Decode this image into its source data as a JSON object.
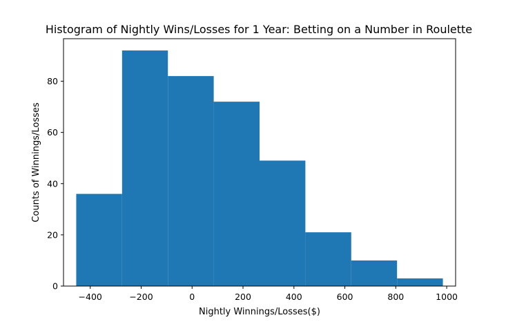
{
  "chart_data": {
    "type": "bar",
    "title": "Histogram of Nightly Wins/Losses for 1 Year: Betting on a Number in Roulette",
    "xlabel": "Nightly Winnings/Losses($)",
    "ylabel": "Counts of Winnings/Losses",
    "bins": [
      {
        "start": -455,
        "end": -275,
        "count": 36
      },
      {
        "start": -275,
        "end": -95,
        "count": 92
      },
      {
        "start": -95,
        "end": 85,
        "count": 82
      },
      {
        "start": 85,
        "end": 265,
        "count": 72
      },
      {
        "start": 265,
        "end": 445,
        "count": 49
      },
      {
        "start": 445,
        "end": 625,
        "count": 21
      },
      {
        "start": 625,
        "end": 805,
        "count": 10
      },
      {
        "start": 805,
        "end": 985,
        "count": 3
      }
    ],
    "xlim": [
      -505,
      1035
    ],
    "ylim": [
      0,
      96.6
    ],
    "xticks": [
      -400,
      -200,
      0,
      200,
      400,
      600,
      800,
      1000
    ],
    "xtick_labels": [
      "−400",
      "−200",
      "0",
      "200",
      "400",
      "600",
      "800",
      "1000"
    ],
    "yticks": [
      0,
      20,
      40,
      60,
      80
    ],
    "ytick_labels": [
      "0",
      "20",
      "40",
      "60",
      "80"
    ],
    "bar_color": "#1f77b4",
    "grid": false,
    "legend": "none"
  }
}
